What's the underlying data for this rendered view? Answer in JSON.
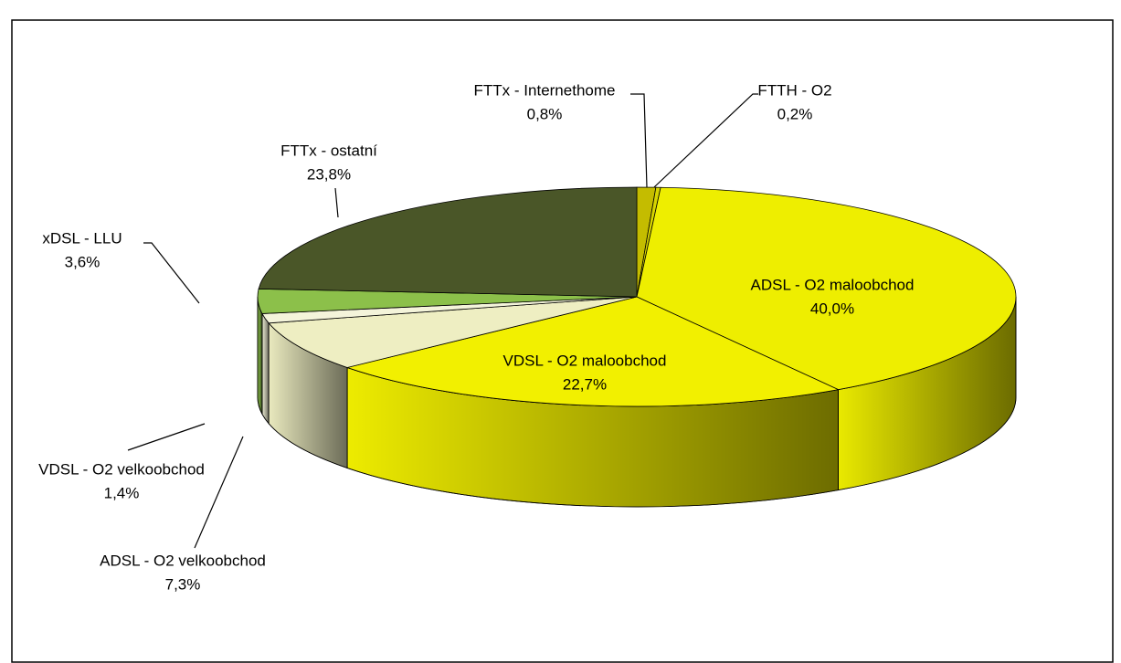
{
  "chart_data": {
    "type": "pie",
    "categories": [
      "FTTx - Internethome",
      "FTTH - O2",
      "ADSL - O2 maloobchod",
      "VDSL - O2 maloobchod",
      "ADSL - O2 velkoobchod",
      "VDSL - O2 velkoobchod",
      "xDSL - LLU",
      "FTTx - ostatní"
    ],
    "values": [
      0.8,
      0.2,
      40.0,
      22.7,
      7.3,
      1.4,
      3.6,
      23.8
    ],
    "value_labels": [
      "0,8%",
      "0,2%",
      "40,0%",
      "22,7%",
      "7,3%",
      "1,4%",
      "3,6%",
      "23,8%"
    ],
    "colors": [
      "#c4bc00",
      "#d6d400",
      "#eeee00",
      "#f2f000",
      "#eeeec2",
      "#f4f4da",
      "#8cc04a",
      "#4a5628"
    ]
  }
}
